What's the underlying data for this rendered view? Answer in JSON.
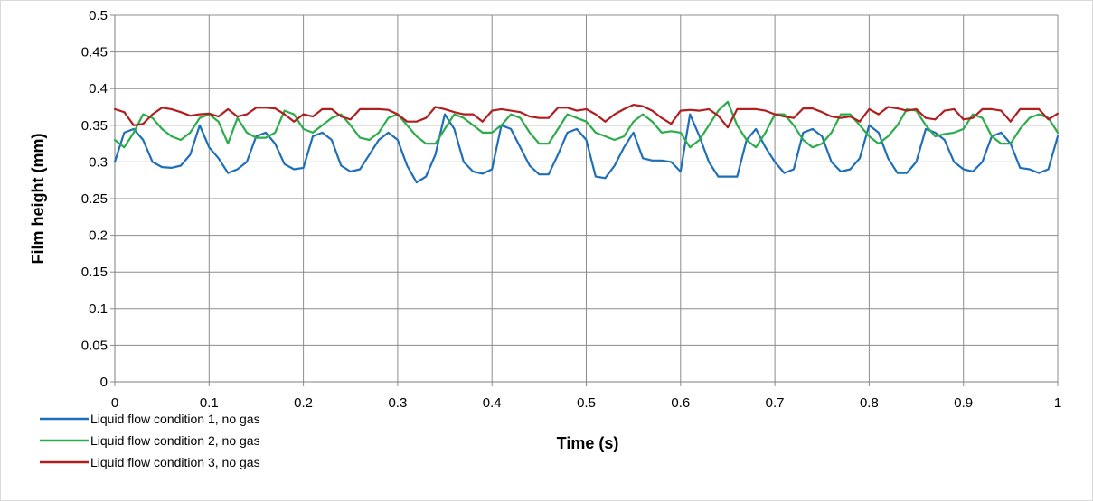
{
  "chart_data": {
    "type": "line",
    "title": "",
    "xlabel": "Time (s)",
    "ylabel": "Film height (mm)",
    "xlim": [
      0,
      1
    ],
    "ylim": [
      0,
      0.5
    ],
    "x_ticks": [
      "0",
      "0.1",
      "0.2",
      "0.3",
      "0.4",
      "0.5",
      "0.6",
      "0.7",
      "0.8",
      "0.9",
      "1"
    ],
    "y_ticks": [
      "0",
      "0.05",
      "0.1",
      "0.15",
      "0.2",
      "0.25",
      "0.3",
      "0.35",
      "0.4",
      "0.45",
      "0.5"
    ],
    "grid": true,
    "legend_position": "bottom-left",
    "series": [
      {
        "name": "Liquid flow condition 1, no gas",
        "color": "#1f6fb8",
        "x": [
          0,
          0.01,
          0.02,
          0.03,
          0.04,
          0.05,
          0.06,
          0.07,
          0.08,
          0.09,
          0.1,
          0.11,
          0.12,
          0.13,
          0.14,
          0.15,
          0.16,
          0.17,
          0.18,
          0.19,
          0.2,
          0.21,
          0.22,
          0.23,
          0.24,
          0.25,
          0.26,
          0.27,
          0.28,
          0.29,
          0.3,
          0.31,
          0.32,
          0.33,
          0.34,
          0.35,
          0.36,
          0.37,
          0.38,
          0.39,
          0.4,
          0.41,
          0.42,
          0.43,
          0.44,
          0.45,
          0.46,
          0.47,
          0.48,
          0.49,
          0.5,
          0.51,
          0.52,
          0.53,
          0.54,
          0.55,
          0.56,
          0.57,
          0.58,
          0.59,
          0.6,
          0.61,
          0.62,
          0.63,
          0.64,
          0.65,
          0.66,
          0.67,
          0.68,
          0.69,
          0.7,
          0.71,
          0.72,
          0.73,
          0.74,
          0.75,
          0.76,
          0.77,
          0.78,
          0.79,
          0.8,
          0.81,
          0.82,
          0.83,
          0.84,
          0.85,
          0.86,
          0.87,
          0.88,
          0.89,
          0.9,
          0.91,
          0.92,
          0.93,
          0.94,
          0.95,
          0.96,
          0.97,
          0.98,
          0.99,
          1.0
        ],
        "y": [
          0.3,
          0.34,
          0.345,
          0.33,
          0.3,
          0.293,
          0.292,
          0.295,
          0.31,
          0.35,
          0.32,
          0.305,
          0.285,
          0.29,
          0.3,
          0.335,
          0.34,
          0.325,
          0.297,
          0.29,
          0.292,
          0.335,
          0.34,
          0.33,
          0.295,
          0.287,
          0.29,
          0.31,
          0.33,
          0.34,
          0.33,
          0.295,
          0.272,
          0.28,
          0.31,
          0.365,
          0.345,
          0.3,
          0.287,
          0.284,
          0.29,
          0.35,
          0.345,
          0.32,
          0.295,
          0.283,
          0.283,
          0.31,
          0.34,
          0.345,
          0.33,
          0.28,
          0.278,
          0.295,
          0.32,
          0.34,
          0.305,
          0.302,
          0.302,
          0.3,
          0.287,
          0.365,
          0.335,
          0.3,
          0.28,
          0.28,
          0.28,
          0.33,
          0.345,
          0.32,
          0.3,
          0.285,
          0.29,
          0.34,
          0.345,
          0.335,
          0.3,
          0.287,
          0.29,
          0.305,
          0.35,
          0.34,
          0.305,
          0.285,
          0.285,
          0.3,
          0.345,
          0.34,
          0.33,
          0.3,
          0.29,
          0.287,
          0.3,
          0.335,
          0.34,
          0.325,
          0.292,
          0.29,
          0.285,
          0.29,
          0.335
        ]
      },
      {
        "name": "Liquid flow condition 2, no gas",
        "color": "#2aad4a",
        "x": [
          0,
          0.01,
          0.02,
          0.03,
          0.04,
          0.05,
          0.06,
          0.07,
          0.08,
          0.09,
          0.1,
          0.11,
          0.12,
          0.13,
          0.14,
          0.15,
          0.16,
          0.17,
          0.18,
          0.19,
          0.2,
          0.21,
          0.22,
          0.23,
          0.24,
          0.25,
          0.26,
          0.27,
          0.28,
          0.29,
          0.3,
          0.31,
          0.32,
          0.33,
          0.34,
          0.35,
          0.36,
          0.37,
          0.38,
          0.39,
          0.4,
          0.41,
          0.42,
          0.43,
          0.44,
          0.45,
          0.46,
          0.47,
          0.48,
          0.49,
          0.5,
          0.51,
          0.52,
          0.53,
          0.54,
          0.55,
          0.56,
          0.57,
          0.58,
          0.59,
          0.6,
          0.61,
          0.62,
          0.63,
          0.64,
          0.65,
          0.66,
          0.67,
          0.68,
          0.69,
          0.7,
          0.71,
          0.72,
          0.73,
          0.74,
          0.75,
          0.76,
          0.77,
          0.78,
          0.79,
          0.8,
          0.81,
          0.82,
          0.83,
          0.84,
          0.85,
          0.86,
          0.87,
          0.88,
          0.89,
          0.9,
          0.91,
          0.92,
          0.93,
          0.94,
          0.95,
          0.96,
          0.97,
          0.98,
          0.99,
          1.0
        ],
        "y": [
          0.33,
          0.32,
          0.34,
          0.365,
          0.36,
          0.345,
          0.335,
          0.33,
          0.34,
          0.36,
          0.365,
          0.355,
          0.325,
          0.36,
          0.34,
          0.333,
          0.333,
          0.34,
          0.37,
          0.365,
          0.345,
          0.34,
          0.35,
          0.36,
          0.365,
          0.35,
          0.333,
          0.33,
          0.34,
          0.36,
          0.365,
          0.35,
          0.335,
          0.325,
          0.325,
          0.345,
          0.365,
          0.36,
          0.35,
          0.34,
          0.34,
          0.35,
          0.365,
          0.36,
          0.34,
          0.325,
          0.325,
          0.345,
          0.365,
          0.36,
          0.355,
          0.34,
          0.335,
          0.33,
          0.335,
          0.355,
          0.365,
          0.355,
          0.34,
          0.342,
          0.34,
          0.32,
          0.33,
          0.35,
          0.37,
          0.382,
          0.35,
          0.33,
          0.32,
          0.34,
          0.365,
          0.365,
          0.35,
          0.33,
          0.32,
          0.325,
          0.34,
          0.365,
          0.365,
          0.35,
          0.335,
          0.325,
          0.335,
          0.35,
          0.372,
          0.37,
          0.35,
          0.335,
          0.338,
          0.34,
          0.345,
          0.365,
          0.36,
          0.335,
          0.325,
          0.325,
          0.345,
          0.36,
          0.365,
          0.36,
          0.34
        ]
      },
      {
        "name": "Liquid flow condition 3, no gas",
        "color": "#b01e1e",
        "x": [
          0,
          0.01,
          0.02,
          0.03,
          0.04,
          0.05,
          0.06,
          0.07,
          0.08,
          0.09,
          0.1,
          0.11,
          0.12,
          0.13,
          0.14,
          0.15,
          0.16,
          0.17,
          0.18,
          0.19,
          0.2,
          0.21,
          0.22,
          0.23,
          0.24,
          0.25,
          0.26,
          0.27,
          0.28,
          0.29,
          0.3,
          0.31,
          0.32,
          0.33,
          0.34,
          0.35,
          0.36,
          0.37,
          0.38,
          0.39,
          0.4,
          0.41,
          0.42,
          0.43,
          0.44,
          0.45,
          0.46,
          0.47,
          0.48,
          0.49,
          0.5,
          0.51,
          0.52,
          0.53,
          0.54,
          0.55,
          0.56,
          0.57,
          0.58,
          0.59,
          0.6,
          0.61,
          0.62,
          0.63,
          0.64,
          0.65,
          0.66,
          0.67,
          0.68,
          0.69,
          0.7,
          0.71,
          0.72,
          0.73,
          0.74,
          0.75,
          0.76,
          0.77,
          0.78,
          0.79,
          0.8,
          0.81,
          0.82,
          0.83,
          0.84,
          0.85,
          0.86,
          0.87,
          0.88,
          0.89,
          0.9,
          0.91,
          0.92,
          0.93,
          0.94,
          0.95,
          0.96,
          0.97,
          0.98,
          0.99,
          1.0
        ],
        "y": [
          0.372,
          0.368,
          0.35,
          0.352,
          0.365,
          0.374,
          0.372,
          0.368,
          0.363,
          0.365,
          0.366,
          0.362,
          0.372,
          0.362,
          0.365,
          0.374,
          0.374,
          0.373,
          0.365,
          0.355,
          0.365,
          0.362,
          0.372,
          0.372,
          0.362,
          0.358,
          0.372,
          0.372,
          0.372,
          0.371,
          0.365,
          0.355,
          0.355,
          0.36,
          0.375,
          0.372,
          0.368,
          0.365,
          0.365,
          0.355,
          0.37,
          0.372,
          0.37,
          0.368,
          0.362,
          0.36,
          0.36,
          0.374,
          0.374,
          0.37,
          0.372,
          0.365,
          0.355,
          0.365,
          0.372,
          0.378,
          0.376,
          0.37,
          0.36,
          0.352,
          0.37,
          0.371,
          0.37,
          0.372,
          0.363,
          0.347,
          0.372,
          0.372,
          0.372,
          0.37,
          0.365,
          0.362,
          0.36,
          0.373,
          0.373,
          0.368,
          0.362,
          0.36,
          0.362,
          0.355,
          0.372,
          0.365,
          0.375,
          0.373,
          0.37,
          0.372,
          0.36,
          0.358,
          0.37,
          0.372,
          0.358,
          0.36,
          0.372,
          0.372,
          0.37,
          0.355,
          0.372,
          0.372,
          0.372,
          0.358,
          0.366
        ]
      }
    ]
  }
}
